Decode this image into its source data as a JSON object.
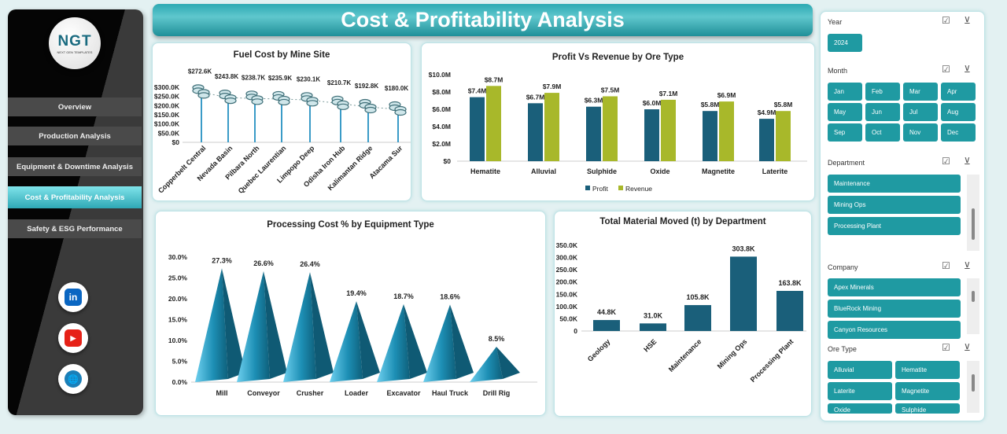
{
  "sidebar": {
    "logo": {
      "text": "NGT",
      "subtext": "NEXT GEN TEMPLATES"
    },
    "items": [
      {
        "label": "Overview"
      },
      {
        "label": "Production Analysis"
      },
      {
        "label": "Equipment & Downtime Analysis"
      },
      {
        "label": "Cost & Profitability Analysis",
        "active": true
      },
      {
        "label": "Safety & ESG Performance"
      }
    ],
    "social": [
      {
        "icon": "linkedin-icon",
        "label": "in",
        "color": "#0a66c2"
      },
      {
        "icon": "youtube-icon",
        "label": "▶",
        "color": "#e62117"
      },
      {
        "icon": "globe-icon",
        "label": "🌐",
        "color": "#1a7fb8"
      }
    ]
  },
  "header": {
    "title": "Cost & Profitability Analysis"
  },
  "chart_data": [
    {
      "type": "line",
      "title": "Fuel Cost by Mine Site",
      "categories": [
        "Copperbelt Central",
        "Nevada Basin",
        "Pilbara North",
        "Quebec Laurentian",
        "Limpopo Deep",
        "Odisha Iron Hub",
        "Kalimantan Ridge",
        "Atacama Sur"
      ],
      "values": [
        272.6,
        243.8,
        238.7,
        235.9,
        230.1,
        210.7,
        192.8,
        180.0
      ],
      "labels": [
        "$272.6K",
        "$243.8K",
        "$238.7K",
        "$235.9K",
        "$230.1K",
        "$210.7K",
        "$192.8K",
        "$180.0K"
      ],
      "ylim": [
        0,
        300
      ],
      "yticks": [
        "$0",
        "$50.0K",
        "$100.0K",
        "$150.0K",
        "$200.0K",
        "$250.0K",
        "$300.0K"
      ],
      "color": "#3a9bc7"
    },
    {
      "type": "bar",
      "title": "Profit Vs Revenue by Ore Type",
      "categories": [
        "Hematite",
        "Alluvial",
        "Sulphide",
        "Oxide",
        "Magnetite",
        "Laterite"
      ],
      "series": [
        {
          "name": "Profit",
          "values": [
            7.4,
            6.7,
            6.3,
            6.0,
            5.8,
            4.9
          ],
          "labels": [
            "$7.4M",
            "$6.7M",
            "$6.3M",
            "$6.0M",
            "$5.8M",
            "$4.9M"
          ],
          "color": "#1a5f7a"
        },
        {
          "name": "Revenue",
          "values": [
            8.7,
            7.9,
            7.5,
            7.1,
            6.9,
            5.8
          ],
          "labels": [
            "$8.7M",
            "$7.9M",
            "$7.5M",
            "$7.1M",
            "$6.9M",
            "$5.8M"
          ],
          "color": "#a8b82a"
        }
      ],
      "ylim": [
        0,
        10
      ],
      "yticks": [
        "$0",
        "$2.0M",
        "$4.0M",
        "$6.0M",
        "$8.0M",
        "$10.0M"
      ],
      "legend": "bottom"
    },
    {
      "type": "bar",
      "title": "Processing Cost % by Equipment Type",
      "categories": [
        "Mill",
        "Conveyor",
        "Crusher",
        "Loader",
        "Excavator",
        "Haul Truck",
        "Drill Rig"
      ],
      "values": [
        27.3,
        26.6,
        26.4,
        19.4,
        18.7,
        18.6,
        8.5
      ],
      "labels": [
        "27.3%",
        "26.6%",
        "26.4%",
        "19.4%",
        "18.7%",
        "18.6%",
        "8.5%"
      ],
      "ylim": [
        0,
        30
      ],
      "yticks": [
        "0.0%",
        "5.0%",
        "10.0%",
        "15.0%",
        "20.0%",
        "25.0%",
        "30.0%"
      ],
      "color": "#1d8fb5"
    },
    {
      "type": "bar",
      "title": "Total Material Moved (t) by Department",
      "categories": [
        "Geology",
        "HSE",
        "Maintenance",
        "Mining Ops",
        "Processing Plant"
      ],
      "values": [
        44.8,
        31.0,
        105.8,
        303.8,
        163.8
      ],
      "labels": [
        "44.8K",
        "31.0K",
        "105.8K",
        "303.8K",
        "163.8K"
      ],
      "ylim": [
        0,
        350
      ],
      "yticks": [
        "0",
        "50.0K",
        "100.0K",
        "150.0K",
        "200.0K",
        "250.0K",
        "300.0K",
        "350.0K"
      ],
      "color": "#1a5f7a"
    }
  ],
  "slicers": {
    "year": {
      "title": "Year",
      "items": [
        "2024"
      ]
    },
    "month": {
      "title": "Month",
      "items": [
        "Jan",
        "Feb",
        "Mar",
        "Apr",
        "May",
        "Jun",
        "Jul",
        "Aug",
        "Sep",
        "Oct",
        "Nov",
        "Dec"
      ]
    },
    "department": {
      "title": "Department",
      "items": [
        "Maintenance",
        "Mining Ops",
        "Processing Plant"
      ]
    },
    "company": {
      "title": "Company",
      "items": [
        "Apex Minerals",
        "BlueRock Mining",
        "Canyon Resources"
      ]
    },
    "ore": {
      "title": "Ore Type",
      "items": [
        "Alluvial",
        "Hematite",
        "Laterite",
        "Magnetite",
        "Oxide",
        "Sulphide"
      ]
    }
  }
}
